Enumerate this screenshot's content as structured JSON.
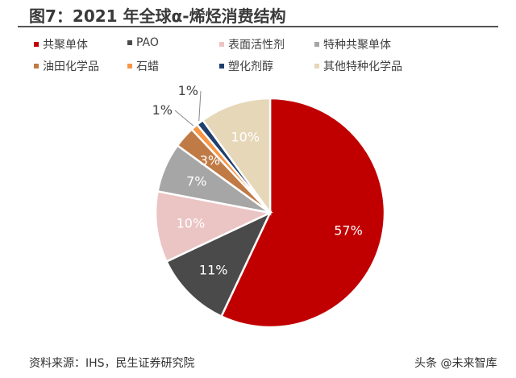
{
  "chart_data": {
    "type": "pie",
    "title": "图7：2021 年全球α-烯烃消费结构",
    "legend_placement": "top",
    "start": "12 o'clock, clockwise",
    "slices": [
      {
        "name": "共聚单体",
        "value": 57,
        "label": "57%",
        "color": "#C00000"
      },
      {
        "name": "PAO",
        "value": 11,
        "label": "11%",
        "color": "#4A4A4A"
      },
      {
        "name": "表面活性剂",
        "value": 10,
        "label": "10%",
        "color": "#EBC4C4"
      },
      {
        "name": "特种共聚单体",
        "value": 7,
        "label": "7%",
        "color": "#A6A6A6"
      },
      {
        "name": "油田化学品",
        "value": 3,
        "label": "3%",
        "color": "#C07A45"
      },
      {
        "name": "石蜡",
        "value": 1,
        "label": "1%",
        "color": "#F79646"
      },
      {
        "name": "塑化剂醇",
        "value": 1,
        "label": "1%",
        "color": "#1F3F6E"
      },
      {
        "name": "其他特种化学品",
        "value": 10,
        "label": "10%",
        "color": "#E6D7B8"
      }
    ]
  },
  "footer": {
    "source": "资料来源：IHS，民生证券研究院",
    "watermark": "头条 @未来智库"
  }
}
